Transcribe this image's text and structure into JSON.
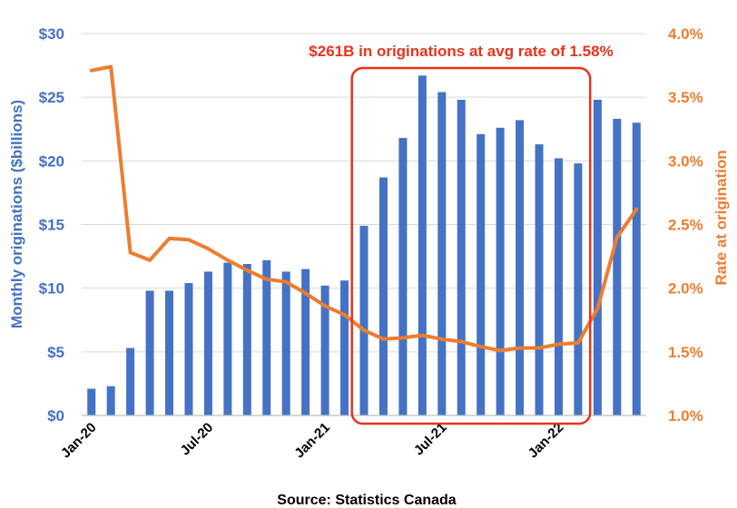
{
  "chart_data": {
    "type": "bar+line",
    "categories": [
      "Jan-20",
      "Feb-20",
      "Mar-20",
      "Apr-20",
      "May-20",
      "Jun-20",
      "Jul-20",
      "Aug-20",
      "Sep-20",
      "Oct-20",
      "Nov-20",
      "Dec-20",
      "Jan-21",
      "Feb-21",
      "Mar-21",
      "Apr-21",
      "May-21",
      "Jun-21",
      "Jul-21",
      "Aug-21",
      "Sep-21",
      "Oct-21",
      "Nov-21",
      "Dec-21",
      "Jan-22",
      "Feb-22",
      "Mar-22",
      "Apr-22",
      "May-22"
    ],
    "x_tick_labels": [
      "Jan-20",
      "Jul-20",
      "Jan-21",
      "Jul-21",
      "Jan-22"
    ],
    "x_tick_indices": [
      0,
      6,
      12,
      18,
      24
    ],
    "series": [
      {
        "name": "Monthly originations ($billions)",
        "type": "bar",
        "axis": "left",
        "color": "#4472C4",
        "values": [
          2.1,
          2.3,
          5.3,
          9.8,
          9.8,
          10.4,
          11.3,
          12.0,
          11.9,
          12.2,
          11.3,
          11.5,
          10.2,
          10.6,
          14.9,
          18.7,
          21.8,
          26.7,
          25.4,
          24.8,
          22.1,
          22.6,
          23.2,
          21.3,
          20.2,
          19.8,
          24.8,
          23.3,
          23.0
        ]
      },
      {
        "name": "Rate at origination",
        "type": "line",
        "axis": "right",
        "color": "#ED7D31",
        "values": [
          3.71,
          3.74,
          2.28,
          2.22,
          2.39,
          2.38,
          2.31,
          2.22,
          2.14,
          2.07,
          2.05,
          1.96,
          1.86,
          1.79,
          1.67,
          1.6,
          1.61,
          1.63,
          1.6,
          1.58,
          1.54,
          1.51,
          1.53,
          1.53,
          1.56,
          1.57,
          1.84,
          2.4,
          2.62
        ]
      }
    ],
    "y_left": {
      "label": "Monthly originations ($billions)",
      "ticks": [
        "$0",
        "$5",
        "$10",
        "$15",
        "$20",
        "$25",
        "$30"
      ],
      "tick_values": [
        0,
        5,
        10,
        15,
        20,
        25,
        30
      ],
      "ylim": [
        0,
        30
      ]
    },
    "y_right": {
      "label": "Rate at origination",
      "ticks": [
        "1.0%",
        "1.5%",
        "2.0%",
        "2.5%",
        "3.0%",
        "3.5%",
        "4.0%"
      ],
      "tick_values": [
        1.0,
        1.5,
        2.0,
        2.5,
        3.0,
        3.5,
        4.0
      ],
      "ylim": [
        1.0,
        4.0
      ]
    },
    "grid": true,
    "annotation": {
      "text": "$261B in originations at avg rate of 1.58%",
      "color": "#E8331C",
      "from_category": "Mar-21",
      "to_category": "Feb-22"
    },
    "source": "Source: Statistics Canada"
  }
}
